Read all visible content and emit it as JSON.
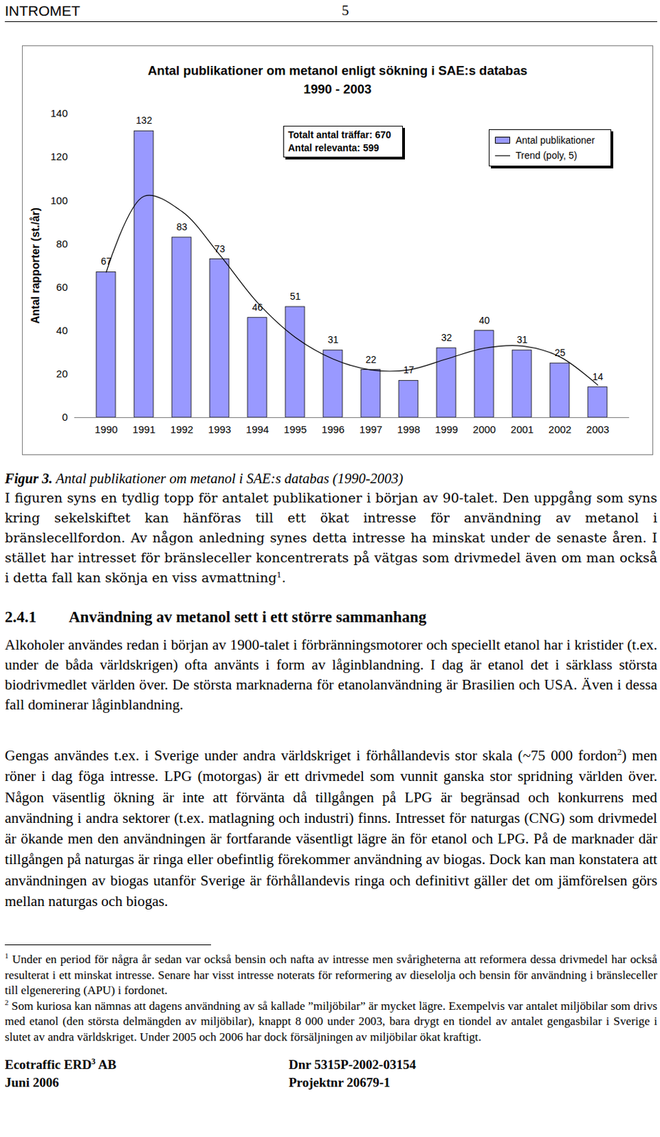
{
  "chart_data": {
    "type": "bar",
    "title": "Antal publikationer om metanol enligt sökning i SAE:s databas\n1990 - 2003",
    "y_label": "Antal rapporter (st./år)",
    "categories": [
      "1990",
      "1991",
      "1992",
      "1993",
      "1994",
      "1995",
      "1996",
      "1997",
      "1998",
      "1999",
      "2000",
      "2001",
      "2002",
      "2003"
    ],
    "series": [
      {
        "name": "Antal publikationer",
        "type": "bar",
        "color": "#9999ff",
        "data_labels": true,
        "values": [
          67,
          132,
          83,
          73,
          46,
          51,
          31,
          22,
          17,
          32,
          40,
          31,
          25,
          14
        ]
      },
      {
        "name": "Trend (poly, 5)",
        "type": "line",
        "color": "#000000",
        "line_style": "solid",
        "values": [
          67,
          102,
          95,
          75,
          53,
          37,
          27,
          22,
          22,
          27,
          32,
          33,
          28,
          15
        ]
      }
    ],
    "ylim": [
      0,
      140
    ],
    "yticks": [
      0,
      20,
      40,
      60,
      80,
      100,
      120,
      140
    ],
    "grid": false,
    "legend": "top-right",
    "annotation": [
      "Totalt antal träffar: 670",
      "Antal relevanta: 599"
    ]
  },
  "document": {
    "header": {
      "title": "INTROMET",
      "page": "5"
    },
    "caption": {
      "label": "Figur 3.",
      "text": "Antal publikationer om metanol i SAE:s databas (1990-2003)"
    },
    "paragraph_1": [
      {
        "text": "I figuren syns en tydlig topp för antalet publikationer i början av 90-talet. Den uppgång som syns kring sekelskiftet kan hänföras till ett ökat intresse för användning av metanol i bränslecellfordon. Av någon anledning synes detta intresse ha minskat under de senaste åren. I stället har intresset för bränsleceller koncentrerats på vätgas som drivmedel även om man också i detta fall kan skönja en viss avmattning"
      },
      {
        "sup": "1"
      },
      {
        "text": "."
      }
    ],
    "heading": {
      "number": "2.4.1",
      "text": "Användning av metanol sett i ett större sammanhang"
    },
    "paragraph_2": [
      {
        "text": "Alkoholer användes redan i början av 1900-talet i förbränningsmotorer och speciellt etanol har i kristider (t.ex. under de båda världskrigen) ofta använts i form av låginblandning. I dag är etanol det i särklass största biodrivmedlet världen över. De största marknaderna för etanolanvändning är Brasilien och USA. Även i dessa fall dominerar låginblandning."
      }
    ],
    "paragraph_3": [
      {
        "text": "Gengas användes t.ex. i Sverige under andra världskriget i förhållandevis stor skala (~75 000 fordon"
      },
      {
        "sup": "2"
      },
      {
        "text": ") men röner i dag föga intresse. LPG (motorgas) är ett drivmedel som vunnit ganska stor spridning världen över. Någon väsentlig ökning är inte att förvänta då tillgången på LPG är begränsad och konkurrens med användning i andra sektorer (t.ex. matlagning och industri) finns. Intresset för naturgas (CNG) som drivmedel är ökande men den användningen är fortfarande väsentligt lägre än för etanol och LPG. På de marknader där tillgången på naturgas är ringa eller obefintlig förekommer användning av biogas. Dock kan man konstatera att användningen av biogas utanför Sverige är förhållandevis ringa och definitivt gäller det om jämförelsen görs mellan naturgas och biogas."
      }
    ],
    "footnotes": [
      {
        "mark": "1",
        "text": "Under en period för några år sedan var också bensin och nafta av intresse men svårigheterna att reformera dessa drivmedel har också resulterat i ett minskat intresse. Senare har visst intresse noterats för reformering av dieselolja och bensin för användning i bränsleceller till elgenerering (APU) i fordonet."
      },
      {
        "mark": "2",
        "text": "Som kuriosa kan nämnas att dagens användning av så kallade ”miljöbilar” är mycket lägre. Exempelvis var antalet miljöbilar som drivs med etanol (den största delmängden av miljöbilar), knappt 8 000 under 2003, bara drygt en tiondel av antalet gengasbilar i Sverige i slutet av andra världskriget. Under 2005 och 2006 har dock försäljningen av miljöbilar ökat kraftigt."
      }
    ],
    "footer": {
      "company": [
        {
          "text": "Ecotraffic ERD"
        },
        {
          "sup": "3"
        },
        {
          "text": " AB"
        }
      ],
      "date": "Juni 2006",
      "dnr": "Dnr 5315P-2002-03154",
      "project": "Projektnr 20679-1"
    }
  }
}
